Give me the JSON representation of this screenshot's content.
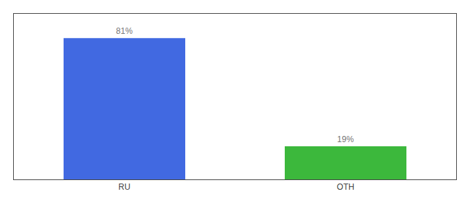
{
  "chart_data": {
    "type": "bar",
    "categories": [
      "RU",
      "OTH"
    ],
    "values": [
      81,
      19
    ],
    "colors": [
      "#4169e1",
      "#3cb83c"
    ],
    "ylim": [
      0,
      95
    ],
    "yticks": [],
    "grid": false,
    "tick_labels": "x",
    "data_labels": true,
    "value_labels": [
      "81%",
      "19%"
    ]
  }
}
